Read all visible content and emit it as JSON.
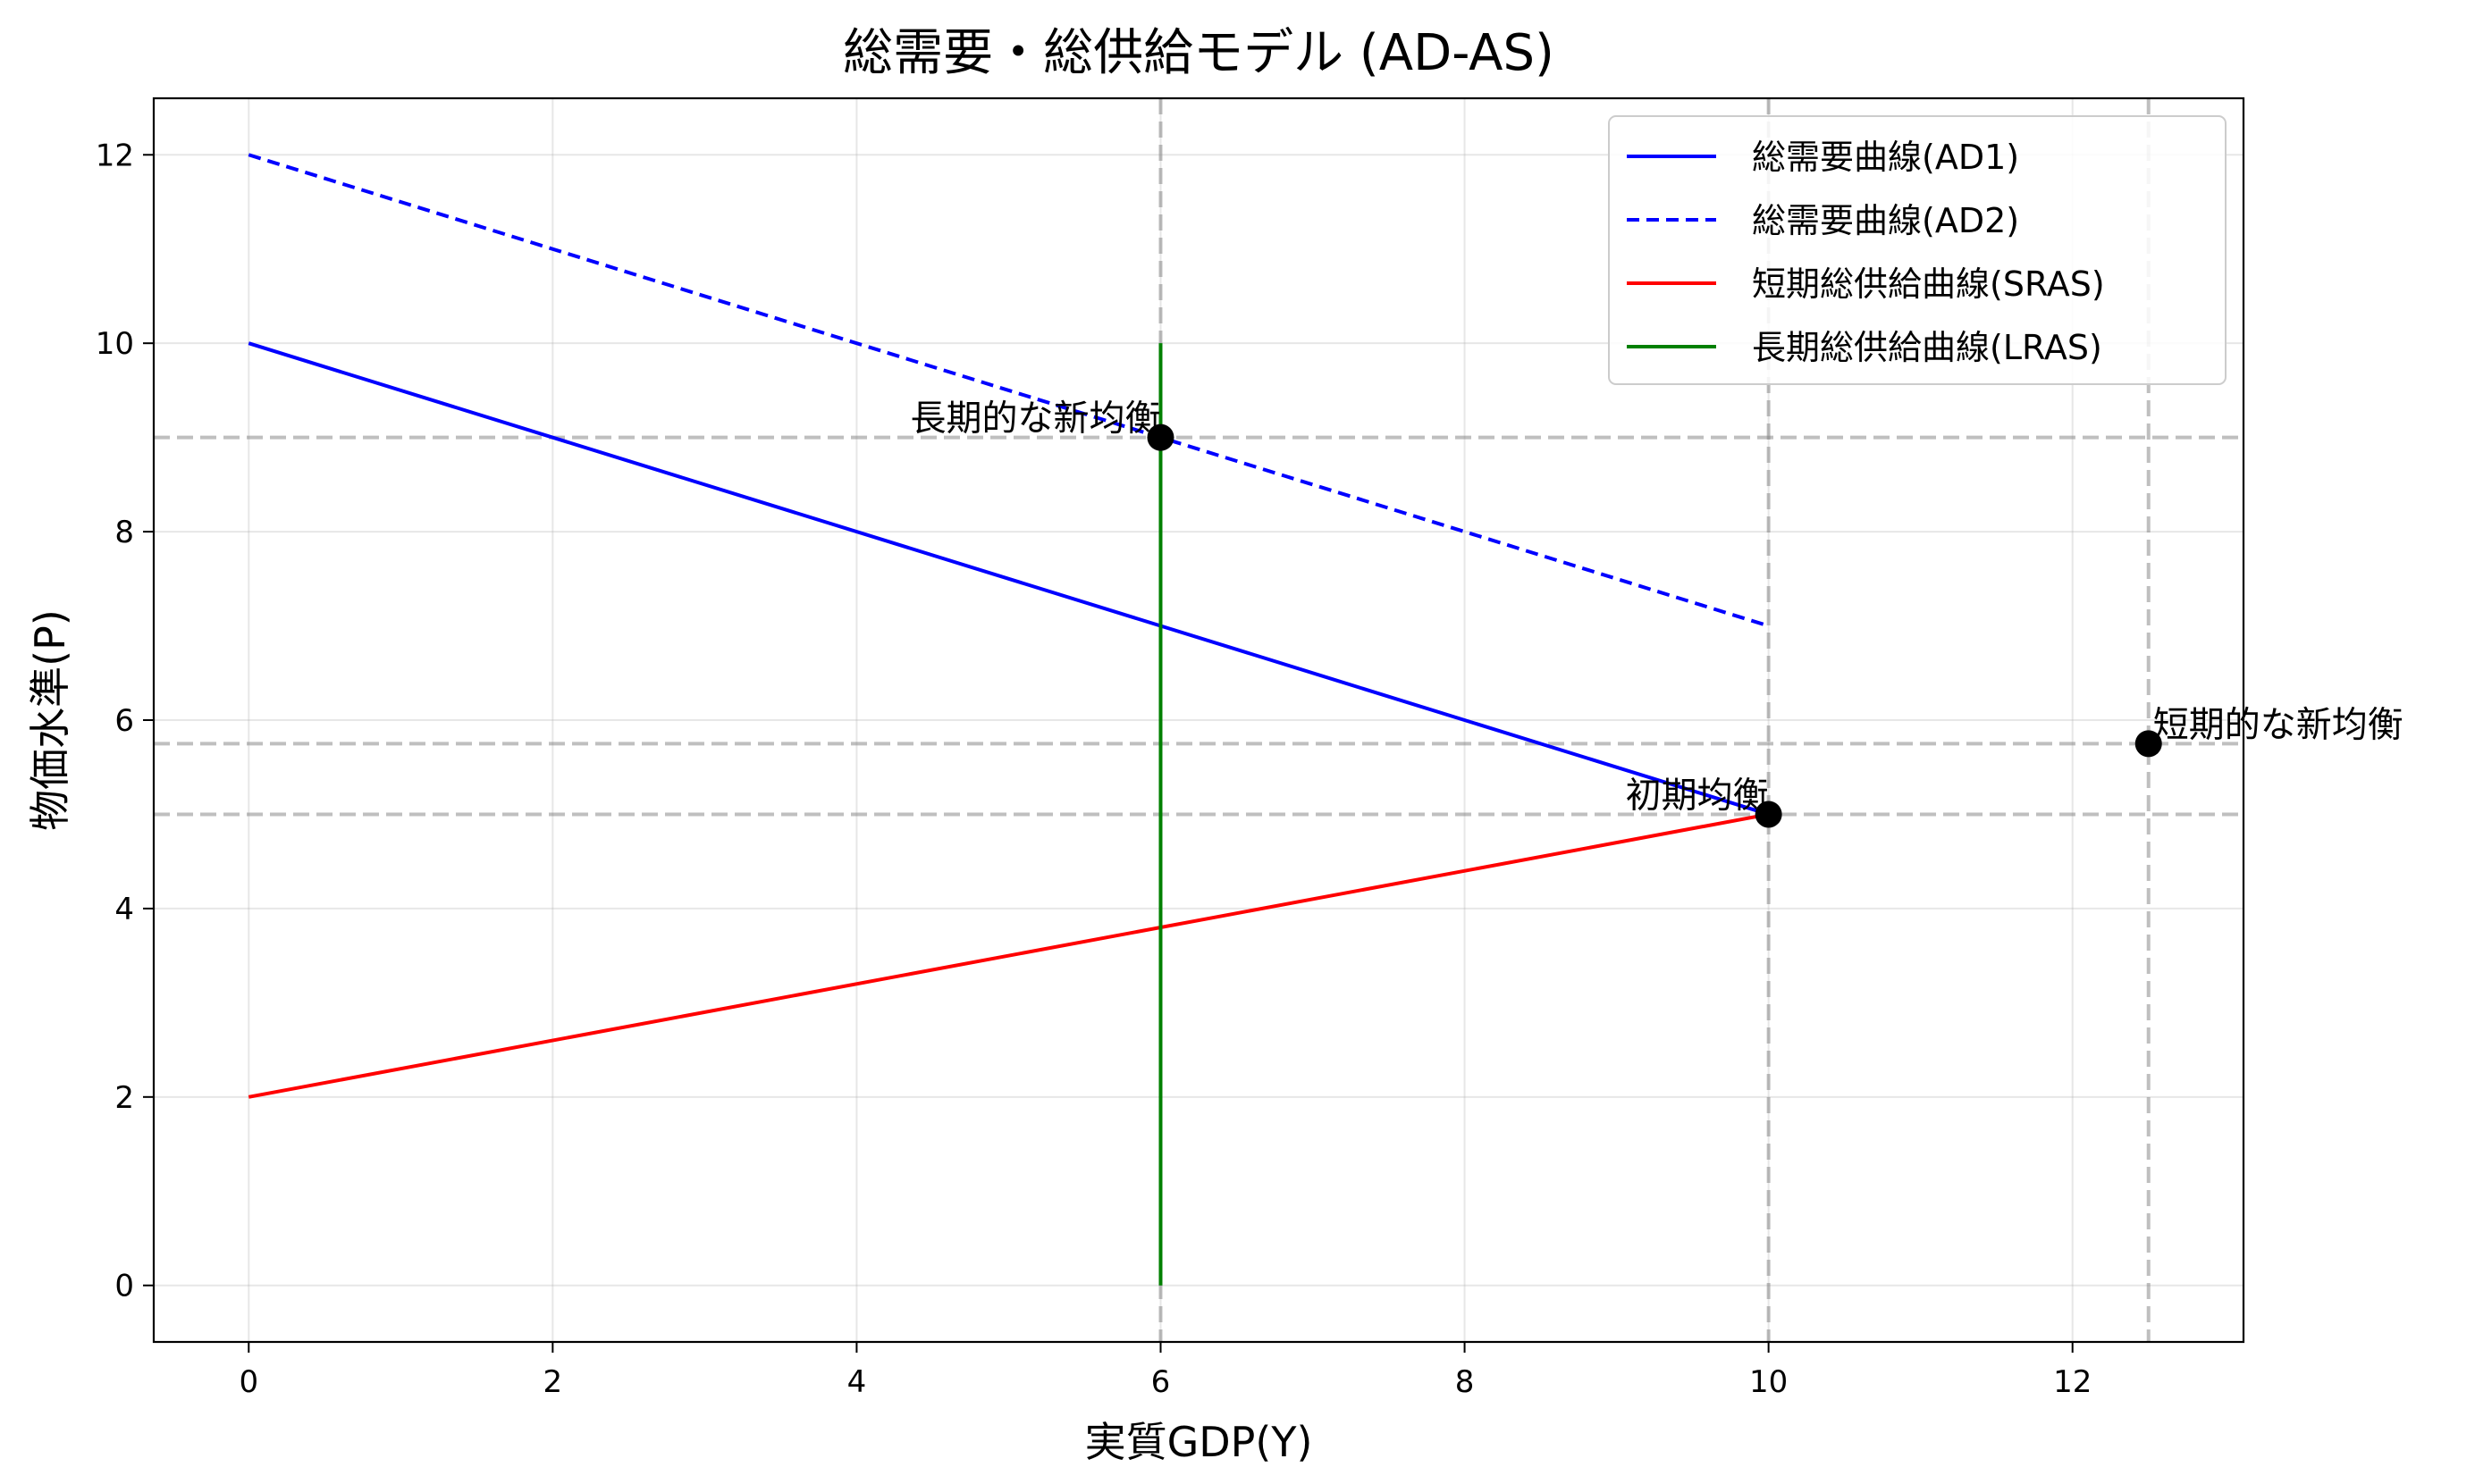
{
  "chart_data": {
    "type": "line",
    "title": "総需要・総供給モデル (AD-AS)",
    "xlabel": "実質GDP(Y)",
    "ylabel": "物価水準(P)",
    "xlim": [
      -0.625,
      13.125
    ],
    "ylim": [
      -0.6,
      12.6
    ],
    "xticks": [
      0,
      2,
      4,
      6,
      8,
      10,
      12
    ],
    "yticks": [
      0,
      2,
      4,
      6,
      8,
      10,
      12
    ],
    "grid": true,
    "legend_position": "top-right",
    "series": [
      {
        "name": "総需要曲線(AD1)",
        "color": "#0000ff",
        "style": "solid",
        "x": [
          0,
          10
        ],
        "y": [
          10,
          5
        ]
      },
      {
        "name": "総需要曲線(AD2)",
        "color": "#0000ff",
        "style": "dashed",
        "x": [
          0,
          10
        ],
        "y": [
          12,
          7
        ]
      },
      {
        "name": "短期総供給曲線(SRAS)",
        "color": "#ff0000",
        "style": "solid",
        "x": [
          0,
          10
        ],
        "y": [
          2,
          5
        ]
      },
      {
        "name": "長期総供給曲線(LRAS)",
        "color": "#008000",
        "style": "solid",
        "x": [
          6,
          6
        ],
        "y": [
          0,
          10
        ]
      }
    ],
    "points": [
      {
        "label": "初期均衡",
        "x": 10,
        "y": 5,
        "align": "right"
      },
      {
        "label": "短期的な新均衡",
        "x": 12.5,
        "y": 5.75,
        "align": "left"
      },
      {
        "label": "長期的な新均衡",
        "x": 6,
        "y": 9,
        "align": "right"
      }
    ],
    "reference_lines": {
      "vertical": [
        6,
        10,
        12.5
      ],
      "horizontal": [
        5,
        5.75,
        9
      ]
    }
  }
}
